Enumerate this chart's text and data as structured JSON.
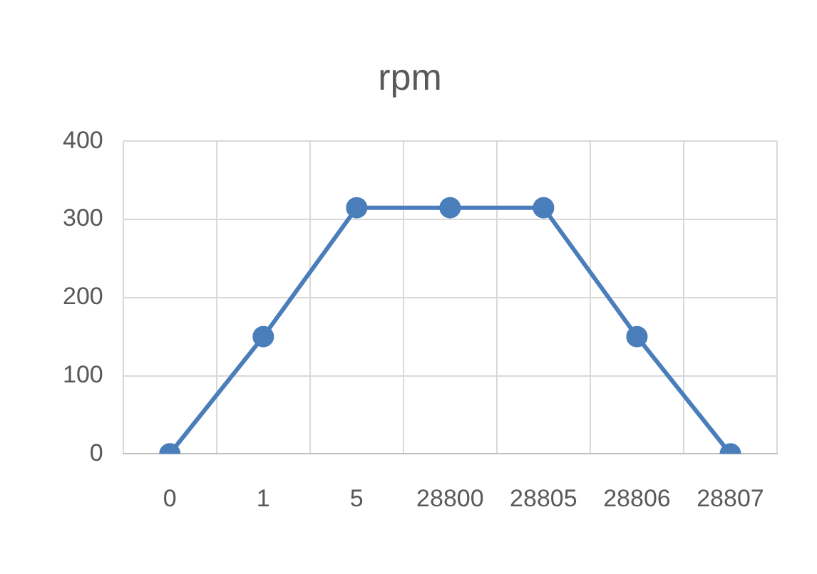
{
  "chart_data": {
    "type": "line",
    "title": "rpm",
    "categories": [
      "0",
      "1",
      "5",
      "28800",
      "28805",
      "28806",
      "28807"
    ],
    "series": [
      {
        "color": "#4a7ebb",
        "values": [
          0,
          150,
          315,
          315,
          315,
          150,
          0
        ]
      }
    ],
    "ylim": [
      0,
      400
    ],
    "yticks": [
      0,
      100,
      200,
      300,
      400
    ],
    "grid": true,
    "legend": false,
    "marker": "circle",
    "line_style": "solid"
  }
}
